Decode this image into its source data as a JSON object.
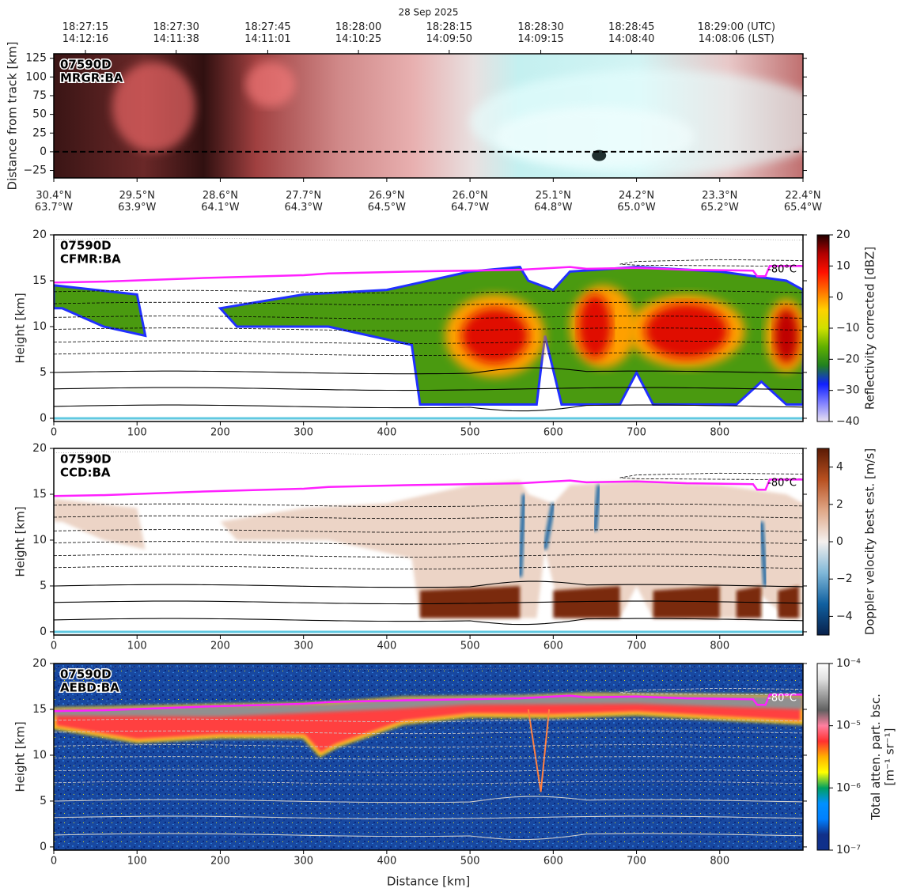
{
  "chart_data": [
    {
      "type": "image",
      "title": "28 Sep 2025",
      "label": [
        "07590D",
        "MRGR:BA"
      ],
      "ylabel": "Distance from track [km]",
      "xlim": [
        0,
        900
      ],
      "ylim": [
        -35,
        131
      ],
      "yticks": [
        {
          "value": -25,
          "label": "−25"
        },
        0,
        25,
        50,
        75,
        100,
        125
      ],
      "xticks": [
        {
          "value": 0,
          "label": "30.4°N\n63.7°W"
        },
        {
          "value": 100,
          "label": "29.5°N\n63.9°W"
        },
        {
          "value": 200,
          "label": "28.6°N\n64.1°W"
        },
        {
          "value": 300,
          "label": "27.7°N\n64.3°W"
        },
        {
          "value": 400,
          "label": "26.9°N\n64.5°W"
        },
        {
          "value": 500,
          "label": "26.0°N\n64.7°W"
        },
        {
          "value": 600,
          "label": "25.1°N\n64.8°W"
        },
        {
          "value": 700,
          "label": "24.2°N\n65.0°W"
        },
        {
          "value": 800,
          "label": "23.3°N\n65.2°W"
        },
        {
          "value": 900,
          "label": "22.4°N\n65.4°W"
        }
      ],
      "x2ticks": [
        {
          "value": 38,
          "label": "18:27:15\n14:12:16"
        },
        {
          "value": 147,
          "label": "18:27:30\n14:11:38"
        },
        {
          "value": 257,
          "label": "18:27:45\n14:11:01"
        },
        {
          "value": 366,
          "label": "18:28:00\n14:10:25"
        },
        {
          "value": 475,
          "label": "18:28:15\n14:09:50"
        },
        {
          "value": 585,
          "label": "18:28:30\n14:09:15"
        },
        {
          "value": 694,
          "label": "18:28:45\n14:08:40"
        },
        {
          "value": 820,
          "label": "18:29:00 (UTC)\n14:08:06 (LST)"
        }
      ]
    },
    {
      "type": "heatmap",
      "label": [
        "07590D",
        "CFMR:BA"
      ],
      "ylabel": "Height [km]",
      "annotation": "-80°C",
      "xlim": [
        0,
        900
      ],
      "ylim": [
        -0.35,
        20
      ],
      "xticks": [
        0,
        100,
        200,
        300,
        400,
        500,
        600,
        700,
        800
      ],
      "yticks": [
        0,
        5,
        10,
        15,
        20
      ],
      "colorbar": {
        "label": "Reflectivity corrected [dBZ]",
        "lim": [
          -40,
          20
        ],
        "log": false,
        "ticks": [
          {
            "value": -40,
            "label": "−40"
          },
          {
            "value": -30,
            "label": "−30"
          },
          {
            "value": -20,
            "label": "−20"
          },
          {
            "value": -10,
            "label": "−10"
          },
          0,
          10,
          20
        ],
        "colors": [
          "#e8e0f0",
          "#8080ff",
          "#1020ff",
          "#208020",
          "#60b000",
          "#d0e000",
          "#ffd000",
          "#ff7000",
          "#ff1000",
          "#b00000",
          "#200000"
        ]
      }
    },
    {
      "type": "heatmap",
      "label": [
        "07590D",
        "CCD:BA"
      ],
      "ylabel": "Height [km]",
      "annotation": "-80°C",
      "xlim": [
        0,
        900
      ],
      "ylim": [
        -0.35,
        20
      ],
      "xticks": [
        0,
        100,
        200,
        300,
        400,
        500,
        600,
        700,
        800
      ],
      "yticks": [
        0,
        5,
        10,
        15,
        20
      ],
      "colorbar": {
        "label": "Doppler velocity best est. [m/s]",
        "lim": [
          -5,
          5
        ],
        "log": false,
        "ticks": [
          {
            "value": -4,
            "label": "−4"
          },
          {
            "value": -2,
            "label": "−2"
          },
          0,
          2,
          4
        ],
        "colors": [
          "#08204a",
          "#1060a0",
          "#80b8d8",
          "#f4f0ee",
          "#e0a888",
          "#b85020",
          "#5a1a04"
        ]
      }
    },
    {
      "type": "heatmap",
      "label": [
        "07590D",
        "AEBD:BA"
      ],
      "ylabel": "Height [km]",
      "xlabel": "Distance [km]",
      "annotation": "-80°C",
      "xlim": [
        0,
        900
      ],
      "ylim": [
        -0.35,
        20
      ],
      "xticks": [
        0,
        100,
        200,
        300,
        400,
        500,
        600,
        700,
        800
      ],
      "yticks": [
        0,
        5,
        10,
        15,
        20
      ],
      "colorbar": {
        "label": "Total atten. part. bsc.\n[m⁻¹ sr⁻¹]",
        "lim": [
          1e-07,
          0.0001
        ],
        "log": true,
        "ticks": [
          {
            "value": 1e-07,
            "label": "10⁻⁷"
          },
          {
            "value": 1e-06,
            "label": "10⁻⁶"
          },
          {
            "value": 1e-05,
            "label": "10⁻⁵"
          },
          {
            "value": 0.0001,
            "label": "10⁻⁴"
          }
        ],
        "colors": [
          "#10308a",
          "#10308a",
          "#0080ff",
          "#0090ff",
          "#00a060",
          "#ffff00",
          "#ffb000",
          "#ff3030",
          "#ff80a0",
          "#606060",
          "#a0a0a0",
          "#e0e0e0",
          "#ffffff"
        ]
      }
    }
  ]
}
